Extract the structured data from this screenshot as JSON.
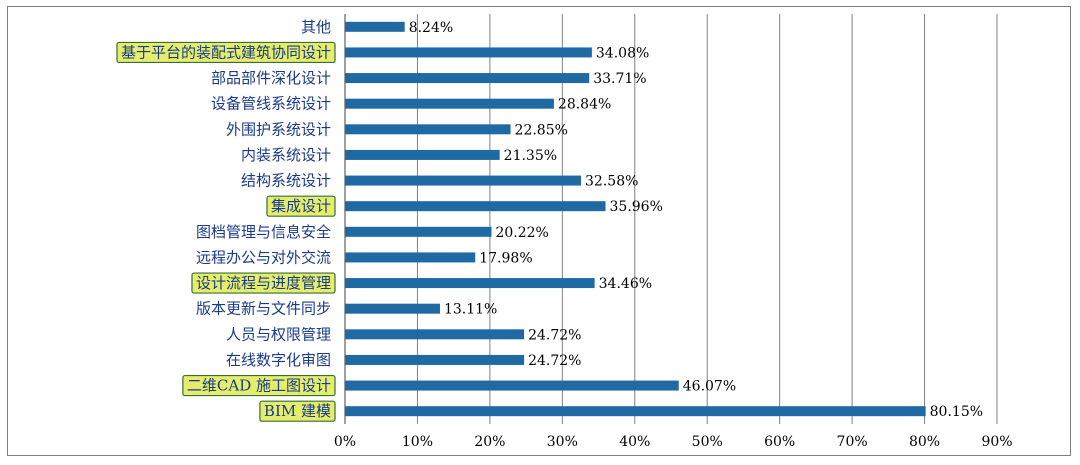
{
  "chart_data": {
    "type": "bar",
    "orientation": "horizontal",
    "title": "",
    "xlabel": "",
    "ylabel": "",
    "xlim": [
      0,
      90
    ],
    "x_ticks": [
      "0%",
      "10%",
      "20%",
      "30%",
      "40%",
      "50%",
      "60%",
      "70%",
      "80%",
      "90%"
    ],
    "grid": true,
    "legend": "none",
    "categories": [
      "其他",
      "基于平台的装配式建筑协同设计",
      "部品部件深化设计",
      "设备管线系统设计",
      "外围护系统设计",
      "内装系统设计",
      "结构系统设计",
      "集成设计",
      "图档管理与信息安全",
      "远程办公与对外交流",
      "设计流程与进度管理",
      "版本更新与文件同步",
      "人员与权限管理",
      "在线数字化审图",
      "二维CAD 施工图设计",
      "BIM 建模"
    ],
    "values": [
      8.24,
      34.08,
      33.71,
      28.84,
      22.85,
      21.35,
      32.58,
      35.96,
      20.22,
      17.98,
      34.46,
      13.11,
      24.72,
      24.72,
      46.07,
      80.15
    ],
    "value_labels": [
      "8.24%",
      "34.08%",
      "33.71%",
      "28.84%",
      "22.85%",
      "21.35%",
      "32.58%",
      "35.96%",
      "20.22%",
      "17.98%",
      "34.46%",
      "13.11%",
      "24.72%",
      "24.72%",
      "46.07%",
      "80.15%"
    ],
    "highlighted": [
      false,
      true,
      false,
      false,
      false,
      false,
      false,
      true,
      false,
      false,
      true,
      false,
      false,
      false,
      true,
      true
    ],
    "colors": {
      "bar": "#1f6aa5",
      "grid": "#808080",
      "axis": "#404040",
      "category_text": "#1a3a8a",
      "highlight_fill": "#e4ee6a",
      "highlight_border": "#3c6a3a"
    }
  }
}
